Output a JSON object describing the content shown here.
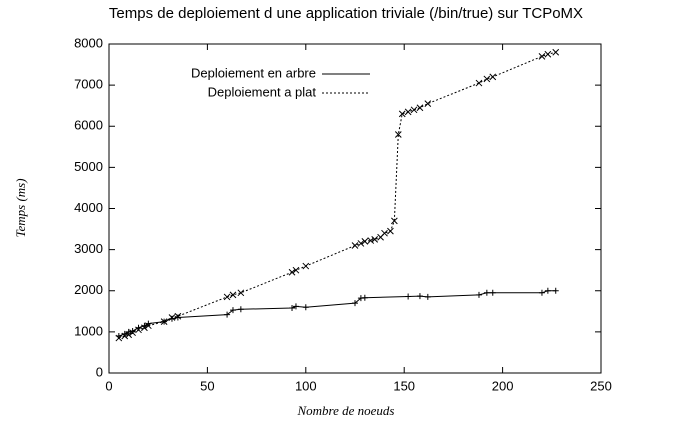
{
  "chart_data": {
    "type": "line",
    "title": "Temps de deploiement d une application triviale (/bin/true) sur TCPoMX",
    "x_label": "Nombre de noeuds",
    "y_label": "Temps (ms)",
    "xlim": [
      0,
      250
    ],
    "xticks": [
      0,
      50,
      100,
      150,
      200,
      250
    ],
    "ylim": [
      0,
      8000
    ],
    "yticks": [
      0,
      1000,
      2000,
      3000,
      4000,
      5000,
      6000,
      7000,
      8000
    ],
    "legend": "top-left",
    "series": [
      {
        "name": "Deploiement en arbre",
        "color": "#000000",
        "style": "solid",
        "marker": "plus",
        "x": [
          5,
          8,
          10,
          12,
          15,
          18,
          20,
          28,
          32,
          35,
          60,
          63,
          67,
          93,
          95,
          100,
          125,
          128,
          130,
          152,
          158,
          162,
          188,
          192,
          195,
          220,
          223,
          227
        ],
        "values": [
          900,
          950,
          1000,
          1020,
          1100,
          1150,
          1200,
          1250,
          1320,
          1350,
          1420,
          1530,
          1550,
          1580,
          1620,
          1600,
          1700,
          1820,
          1830,
          1860,
          1870,
          1850,
          1900,
          1950,
          1950,
          1950,
          2000,
          2000
        ]
      },
      {
        "name": "Deploiement a plat",
        "color": "#000000",
        "style": "dotted",
        "marker": "cross",
        "x": [
          5,
          8,
          10,
          12,
          15,
          18,
          20,
          28,
          32,
          35,
          60,
          63,
          67,
          93,
          95,
          100,
          125,
          128,
          130,
          133,
          135,
          138,
          140,
          143,
          145,
          147,
          149,
          152,
          155,
          158,
          162,
          188,
          192,
          195,
          220,
          223,
          227
        ],
        "values": [
          850,
          900,
          930,
          980,
          1050,
          1100,
          1150,
          1250,
          1350,
          1380,
          1850,
          1900,
          1950,
          2450,
          2500,
          2600,
          3100,
          3150,
          3200,
          3220,
          3250,
          3300,
          3400,
          3450,
          3700,
          5800,
          6300,
          6350,
          6400,
          6450,
          6550,
          7050,
          7150,
          7200,
          7700,
          7750,
          7800
        ]
      }
    ]
  }
}
